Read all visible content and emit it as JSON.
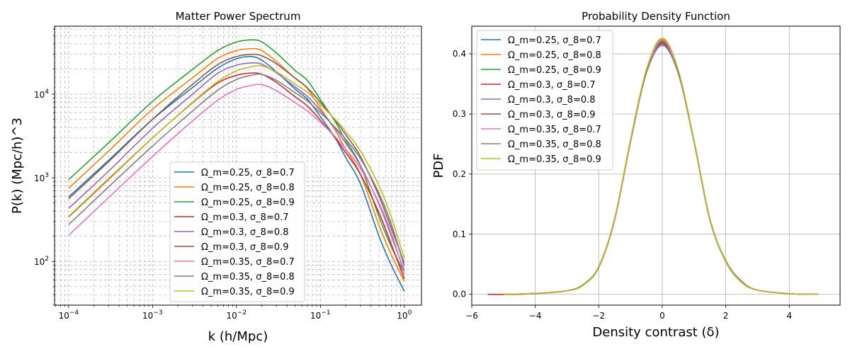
{
  "chart_data": [
    {
      "type": "line",
      "title": "Matter Power Spectrum",
      "xlabel": "k (h/Mpc)",
      "ylabel": "P(k) (Mpc/h)^3",
      "xscale": "log",
      "yscale": "log",
      "xlim": [
        6.8e-05,
        1.6
      ],
      "ylim": [
        30,
        65000
      ],
      "grid": "both-major-minor",
      "legend_position": "lower-center",
      "xtick_labels": [
        {
          "base": "10",
          "exp": "−4",
          "value": 0.0001
        },
        {
          "base": "10",
          "exp": "−3",
          "value": 0.001
        },
        {
          "base": "10",
          "exp": "−2",
          "value": 0.01
        },
        {
          "base": "10",
          "exp": "−1",
          "value": 0.1
        },
        {
          "base": "10",
          "exp": "0",
          "value": 1
        }
      ],
      "ytick_labels": [
        {
          "base": "10",
          "exp": "2",
          "value": 100
        },
        {
          "base": "10",
          "exp": "3",
          "value": 1000
        },
        {
          "base": "10",
          "exp": "4",
          "value": 10000
        }
      ],
      "x": [
        0.0001,
        0.0003,
        0.001,
        0.003,
        0.006,
        0.01,
        0.015,
        0.02,
        0.03,
        0.05,
        0.07,
        0.1,
        0.15,
        0.2,
        0.3,
        0.5,
        0.7,
        1.0
      ],
      "series": [
        {
          "name": "Ω_m=0.25, σ_8=0.7",
          "color": "#1f77b4",
          "values": [
            590,
            1620,
            5000,
            12000,
            20500,
            26500,
            28200,
            25500,
            18500,
            11500,
            8700,
            5400,
            3000,
            1750,
            850,
            200,
            90,
            44
          ]
        },
        {
          "name": "Ω_m=0.25, σ_8=0.8",
          "color": "#ff7f0e",
          "values": [
            750,
            2090,
            6600,
            15700,
            26800,
            33200,
            35000,
            33400,
            24500,
            15500,
            11700,
            6800,
            3700,
            2200,
            1100,
            270,
            120,
            58
          ]
        },
        {
          "name": "Ω_m=0.25, σ_8=0.9",
          "color": "#2ca02c",
          "values": [
            950,
            2620,
            8200,
            19800,
            33400,
            42000,
            44600,
            42300,
            31000,
            19200,
            14600,
            8600,
            4700,
            2800,
            1400,
            340,
            150,
            72
          ]
        },
        {
          "name": "Ω_m=0.3, σ_8=0.7",
          "color": "#d62728",
          "values": [
            340,
            960,
            3000,
            7900,
            13600,
            16800,
            17900,
            17300,
            13800,
            9300,
            7200,
            4900,
            3000,
            2000,
            1100,
            380,
            160,
            62
          ]
        },
        {
          "name": "Ω_m=0.3, σ_8=0.8",
          "color": "#9467bd",
          "values": [
            430,
            1200,
            3900,
            10000,
            17800,
            22200,
            23600,
            22800,
            18000,
            12200,
            9400,
            6400,
            3900,
            2600,
            1400,
            480,
            200,
            78
          ]
        },
        {
          "name": "Ω_m=0.3, σ_8=0.9",
          "color": "#8c564b",
          "values": [
            560,
            1560,
            5000,
            13100,
            22600,
            28200,
            30000,
            28800,
            23000,
            15600,
            11900,
            8000,
            4900,
            3300,
            1800,
            600,
            250,
            95
          ]
        },
        {
          "name": "Ω_m=0.35, σ_8=0.7",
          "color": "#e377c2",
          "values": [
            205,
            580,
            1800,
            4800,
            8500,
            11400,
            12700,
            13000,
            11000,
            7900,
            6300,
            4600,
            3100,
            2200,
            1300,
            500,
            220,
            70
          ]
        },
        {
          "name": "Ω_m=0.35, σ_8=0.8",
          "color": "#7f7f7f",
          "values": [
            275,
            780,
            2400,
            6300,
            11200,
            15000,
            16800,
            17200,
            14600,
            10400,
            8300,
            6000,
            4000,
            2900,
            1700,
            650,
            280,
            88
          ]
        },
        {
          "name": "Ω_m=0.35, σ_8=0.9",
          "color": "#bcbd22",
          "values": [
            345,
            980,
            3000,
            8000,
            14200,
            19000,
            21300,
            21800,
            18500,
            13200,
            10500,
            7500,
            5000,
            3600,
            2100,
            800,
            340,
            108
          ]
        }
      ]
    },
    {
      "type": "line",
      "title": "Probability Density Function",
      "xlabel": "Density contrast (δ)",
      "ylabel": "PDF",
      "xlim": [
        -6.0,
        5.6
      ],
      "ylim": [
        -0.018,
        0.446
      ],
      "grid": "major",
      "legend_position": "upper-left",
      "xticks": [
        -6,
        -4,
        -2,
        0,
        2,
        4
      ],
      "xtick_labels": [
        "−6",
        "−4",
        "−2",
        "0",
        "2",
        "4"
      ],
      "yticks": [
        0.0,
        0.1,
        0.2,
        0.3,
        0.4
      ],
      "ytick_labels": [
        "0.0",
        "0.1",
        "0.2",
        "0.3",
        "0.4"
      ],
      "series": [
        {
          "name": "Ω_m=0.25, σ_8=0.7",
          "color": "#1f77b4",
          "x": [
            -5.0,
            -4.0,
            -3.0,
            -2.5,
            -2.0,
            -1.5,
            -1.0,
            -0.5,
            0.0,
            0.5,
            1.0,
            1.5,
            2.0,
            2.5,
            3.0,
            4.0,
            4.9
          ],
          "y": [
            0.0,
            0.0015,
            0.006,
            0.015,
            0.045,
            0.125,
            0.255,
            0.37,
            0.42,
            0.37,
            0.255,
            0.125,
            0.055,
            0.02,
            0.007,
            0.001,
            0.0
          ]
        },
        {
          "name": "Ω_m=0.25, σ_8=0.8",
          "color": "#ff7f0e",
          "x": [
            -5.0,
            -4.0,
            -3.0,
            -2.5,
            -2.0,
            -1.5,
            -1.0,
            -0.5,
            0.0,
            0.5,
            1.0,
            1.5,
            2.0,
            2.5,
            3.0,
            4.0,
            4.9
          ],
          "y": [
            0.0,
            0.0015,
            0.006,
            0.015,
            0.046,
            0.126,
            0.257,
            0.372,
            0.424,
            0.371,
            0.255,
            0.125,
            0.056,
            0.02,
            0.007,
            0.001,
            0.0
          ]
        },
        {
          "name": "Ω_m=0.25, σ_8=0.9",
          "color": "#2ca02c",
          "x": [
            -5.0,
            -4.0,
            -3.0,
            -2.5,
            -2.0,
            -1.5,
            -1.0,
            -0.5,
            0.0,
            0.5,
            1.0,
            1.5,
            2.0,
            2.5,
            3.0,
            4.0,
            4.9
          ],
          "y": [
            0.0,
            0.0015,
            0.006,
            0.016,
            0.046,
            0.125,
            0.256,
            0.37,
            0.42,
            0.37,
            0.256,
            0.126,
            0.055,
            0.021,
            0.007,
            0.001,
            0.0
          ]
        },
        {
          "name": "Ω_m=0.3, σ_8=0.7",
          "color": "#d62728",
          "x": [
            -5.5,
            -4.5,
            -3.5,
            -3.0,
            -2.5,
            -2.0,
            -1.5,
            -1.0,
            -0.5,
            0.0,
            0.5,
            1.0,
            1.5,
            2.0,
            2.5,
            3.0,
            4.0,
            4.9
          ],
          "y": [
            0.0,
            0.0,
            0.003,
            0.006,
            0.015,
            0.045,
            0.124,
            0.254,
            0.369,
            0.418,
            0.369,
            0.254,
            0.124,
            0.055,
            0.02,
            0.007,
            0.001,
            0.0
          ]
        },
        {
          "name": "Ω_m=0.3, σ_8=0.8",
          "color": "#9467bd",
          "x": [
            -5.0,
            -4.0,
            -3.0,
            -2.5,
            -2.0,
            -1.5,
            -1.0,
            -0.5,
            0.0,
            0.5,
            1.0,
            1.5,
            2.0,
            2.5,
            3.0,
            4.0,
            4.9
          ],
          "y": [
            0.0,
            0.0015,
            0.006,
            0.015,
            0.045,
            0.124,
            0.255,
            0.371,
            0.416,
            0.368,
            0.254,
            0.124,
            0.054,
            0.02,
            0.007,
            0.001,
            0.0
          ]
        },
        {
          "name": "Ω_m=0.3, σ_8=0.9",
          "color": "#8c564b",
          "x": [
            -5.0,
            -4.0,
            -3.0,
            -2.5,
            -2.0,
            -1.5,
            -1.0,
            -0.5,
            0.0,
            0.5,
            1.0,
            1.5,
            2.0,
            2.5,
            3.0,
            4.0,
            4.9
          ],
          "y": [
            0.0,
            0.0015,
            0.006,
            0.015,
            0.046,
            0.125,
            0.256,
            0.372,
            0.422,
            0.372,
            0.255,
            0.125,
            0.056,
            0.021,
            0.007,
            0.001,
            0.0
          ]
        },
        {
          "name": "Ω_m=0.35, σ_8=0.7",
          "color": "#e377c2",
          "x": [
            -5.0,
            -4.0,
            -3.0,
            -2.5,
            -2.0,
            -1.5,
            -1.0,
            -0.5,
            0.0,
            0.5,
            1.0,
            1.5,
            2.0,
            2.5,
            3.0,
            4.0,
            4.9
          ],
          "y": [
            0.0,
            0.0015,
            0.006,
            0.015,
            0.045,
            0.126,
            0.256,
            0.37,
            0.423,
            0.37,
            0.255,
            0.125,
            0.055,
            0.02,
            0.007,
            0.001,
            0.0
          ]
        },
        {
          "name": "Ω_m=0.35, σ_8=0.8",
          "color": "#7f7f7f",
          "x": [
            -5.0,
            -4.0,
            -3.0,
            -2.5,
            -2.0,
            -1.5,
            -1.0,
            -0.5,
            0.0,
            0.5,
            1.0,
            1.5,
            2.0,
            2.5,
            3.0,
            4.0,
            4.9
          ],
          "y": [
            0.0,
            0.0015,
            0.006,
            0.015,
            0.045,
            0.125,
            0.254,
            0.368,
            0.414,
            0.368,
            0.254,
            0.125,
            0.056,
            0.022,
            0.007,
            0.001,
            0.0
          ]
        },
        {
          "name": "Ω_m=0.35, σ_8=0.9",
          "color": "#bcbd22",
          "x": [
            -5.0,
            -4.0,
            -3.0,
            -2.5,
            -2.0,
            -1.5,
            -1.0,
            -0.5,
            0.0,
            0.5,
            1.0,
            1.5,
            2.0,
            2.5,
            3.0,
            4.0,
            4.9
          ],
          "y": [
            0.0,
            0.0015,
            0.006,
            0.015,
            0.046,
            0.126,
            0.257,
            0.374,
            0.426,
            0.374,
            0.256,
            0.126,
            0.055,
            0.02,
            0.007,
            0.001,
            0.0
          ]
        }
      ]
    }
  ]
}
